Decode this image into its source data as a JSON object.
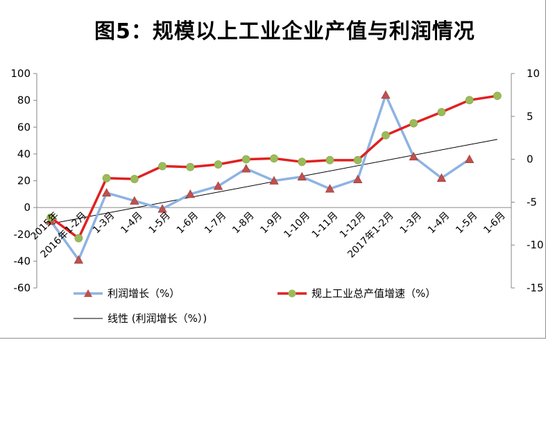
{
  "chart_data": {
    "type": "line",
    "title": "图5：规模以上工业企业产值与利润情况",
    "categories": [
      "2015年",
      "2016年1-2月",
      "1-3月",
      "1-4月",
      "1-5月",
      "1-6月",
      "1-7月",
      "1-8月",
      "1-9月",
      "1-10月",
      "1-11月",
      "1-12月",
      "2017年1-2月",
      "1-3月",
      "1-4月",
      "1-5月",
      "1-6月"
    ],
    "y_left": {
      "ticks": [
        "100",
        "80",
        "60",
        "40",
        "20",
        "0",
        "-20",
        "-40",
        "-60"
      ],
      "ylim": [
        -60,
        100
      ]
    },
    "y_right": {
      "ticks": [
        "10",
        "5",
        "0",
        "-5",
        "-10",
        "-15"
      ],
      "ylim": [
        -15,
        10
      ]
    },
    "series": [
      {
        "name": "利润增长（%）",
        "axis": "left",
        "color": "#8db3e2",
        "marker": "triangle",
        "marker_color": "#c0504d",
        "values": [
          -10,
          -39,
          11,
          5,
          -1,
          10,
          16,
          29,
          20,
          23,
          14,
          21,
          84,
          38,
          22,
          36,
          null
        ]
      },
      {
        "name": "规上工业总产值增速（%）",
        "axis": "right",
        "color": "#e02020",
        "marker": "circle",
        "marker_color": "#9bbb59",
        "values": [
          -6.8,
          -9.2,
          -2.2,
          -2.3,
          -0.8,
          -0.9,
          -0.6,
          0.0,
          0.1,
          -0.3,
          -0.1,
          -0.1,
          2.8,
          4.2,
          5.5,
          6.9,
          7.4
        ]
      },
      {
        "name": "线性 (利润增长（%）)",
        "type": "trendline",
        "color": "#000000",
        "axis": "left"
      }
    ],
    "legend": "bottom"
  }
}
